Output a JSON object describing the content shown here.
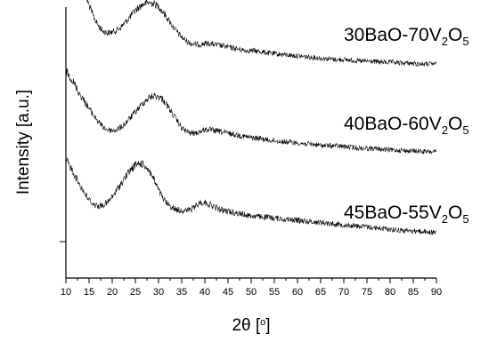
{
  "chart_data": {
    "type": "line",
    "title": "",
    "xlabel_main": "2θ [",
    "xlabel_sup": "o",
    "xlabel_end": "]",
    "ylabel": "Intensity [a.u.]",
    "xlim": [
      10,
      90
    ],
    "x_ticks_major": [
      10,
      15,
      20,
      25,
      30,
      35,
      40,
      45,
      50,
      55,
      60,
      65,
      70,
      75,
      80,
      85,
      90
    ],
    "x_tick_labels": [
      "10",
      "15",
      "20",
      "25",
      "30",
      "35",
      "40",
      "45",
      "50",
      "55",
      "60",
      "65",
      "70",
      "75",
      "80",
      "85",
      "90"
    ],
    "y_ticks": [],
    "grid": false,
    "legend": "none",
    "line_color": "#000000",
    "series": [
      {
        "name_main": "30BaO-70V",
        "name_sub1": "2",
        "name_mid": "O",
        "name_sub2": "5",
        "offset": 2.0,
        "x": [
          10,
          11,
          12,
          13,
          14,
          15,
          16,
          17,
          18,
          19,
          20,
          21,
          22,
          23,
          24,
          25,
          26,
          27,
          28,
          29,
          30,
          31,
          32,
          33,
          34,
          35,
          36,
          37,
          38,
          39,
          40,
          41,
          42,
          43,
          44,
          45,
          46,
          47,
          48,
          49,
          50,
          52,
          54,
          56,
          58,
          60,
          62,
          64,
          66,
          68,
          70,
          72,
          74,
          76,
          78,
          80,
          82,
          84,
          86,
          88,
          90
        ],
        "y": [
          1.33,
          1.2,
          1.05,
          0.93,
          0.8,
          0.66,
          0.53,
          0.43,
          0.37,
          0.35,
          0.36,
          0.38,
          0.42,
          0.48,
          0.54,
          0.6,
          0.65,
          0.68,
          0.69,
          0.68,
          0.65,
          0.58,
          0.51,
          0.43,
          0.36,
          0.3,
          0.26,
          0.23,
          0.22,
          0.22,
          0.23,
          0.23,
          0.22,
          0.21,
          0.2,
          0.19,
          0.18,
          0.17,
          0.16,
          0.15,
          0.15,
          0.14,
          0.12,
          0.11,
          0.1,
          0.09,
          0.08,
          0.07,
          0.06,
          0.05,
          0.05,
          0.04,
          0.03,
          0.03,
          0.02,
          0.02,
          0.01,
          0.01,
          0.0,
          0.0,
          0.0
        ]
      },
      {
        "name_main": "40BaO-60V",
        "name_sub1": "2",
        "name_mid": "O",
        "name_sub2": "5",
        "offset": 1.0,
        "x": [
          10,
          11,
          12,
          13,
          14,
          15,
          16,
          17,
          18,
          19,
          20,
          21,
          22,
          23,
          24,
          25,
          26,
          27,
          28,
          29,
          30,
          31,
          32,
          33,
          34,
          35,
          36,
          37,
          38,
          39,
          40,
          41,
          42,
          43,
          44,
          45,
          46,
          47,
          48,
          49,
          50,
          52,
          54,
          56,
          58,
          60,
          62,
          64,
          66,
          68,
          70,
          72,
          74,
          76,
          78,
          80,
          82,
          84,
          86,
          88,
          90
        ],
        "y": [
          0.92,
          0.85,
          0.76,
          0.66,
          0.58,
          0.5,
          0.42,
          0.35,
          0.29,
          0.26,
          0.25,
          0.26,
          0.29,
          0.34,
          0.4,
          0.46,
          0.52,
          0.58,
          0.62,
          0.64,
          0.63,
          0.6,
          0.52,
          0.44,
          0.36,
          0.28,
          0.24,
          0.22,
          0.22,
          0.24,
          0.26,
          0.26,
          0.25,
          0.24,
          0.23,
          0.22,
          0.21,
          0.2,
          0.19,
          0.18,
          0.17,
          0.16,
          0.14,
          0.13,
          0.12,
          0.11,
          0.1,
          0.09,
          0.08,
          0.08,
          0.07,
          0.06,
          0.05,
          0.05,
          0.04,
          0.03,
          0.03,
          0.02,
          0.02,
          0.01,
          0.01
        ]
      },
      {
        "name_main": "45BaO-55V",
        "name_sub1": "2",
        "name_mid": "O",
        "name_sub2": "5",
        "offset": 0.0,
        "x": [
          10,
          11,
          12,
          13,
          14,
          15,
          16,
          17,
          18,
          19,
          20,
          21,
          22,
          23,
          24,
          25,
          26,
          27,
          28,
          29,
          30,
          31,
          32,
          33,
          34,
          35,
          36,
          37,
          38,
          39,
          40,
          41,
          42,
          43,
          44,
          45,
          46,
          47,
          48,
          49,
          50,
          52,
          54,
          56,
          58,
          60,
          62,
          64,
          66,
          68,
          70,
          72,
          74,
          76,
          78,
          80,
          82,
          84,
          86,
          88,
          90
        ],
        "y": [
          0.93,
          0.84,
          0.74,
          0.64,
          0.55,
          0.47,
          0.42,
          0.4,
          0.41,
          0.44,
          0.5,
          0.58,
          0.66,
          0.74,
          0.81,
          0.86,
          0.88,
          0.86,
          0.8,
          0.7,
          0.58,
          0.48,
          0.42,
          0.38,
          0.36,
          0.35,
          0.35,
          0.36,
          0.4,
          0.44,
          0.44,
          0.42,
          0.39,
          0.37,
          0.35,
          0.34,
          0.33,
          0.32,
          0.31,
          0.3,
          0.29,
          0.28,
          0.27,
          0.26,
          0.25,
          0.24,
          0.23,
          0.22,
          0.21,
          0.2,
          0.19,
          0.18,
          0.17,
          0.16,
          0.15,
          0.14,
          0.13,
          0.12,
          0.12,
          0.11,
          0.1
        ]
      }
    ]
  }
}
